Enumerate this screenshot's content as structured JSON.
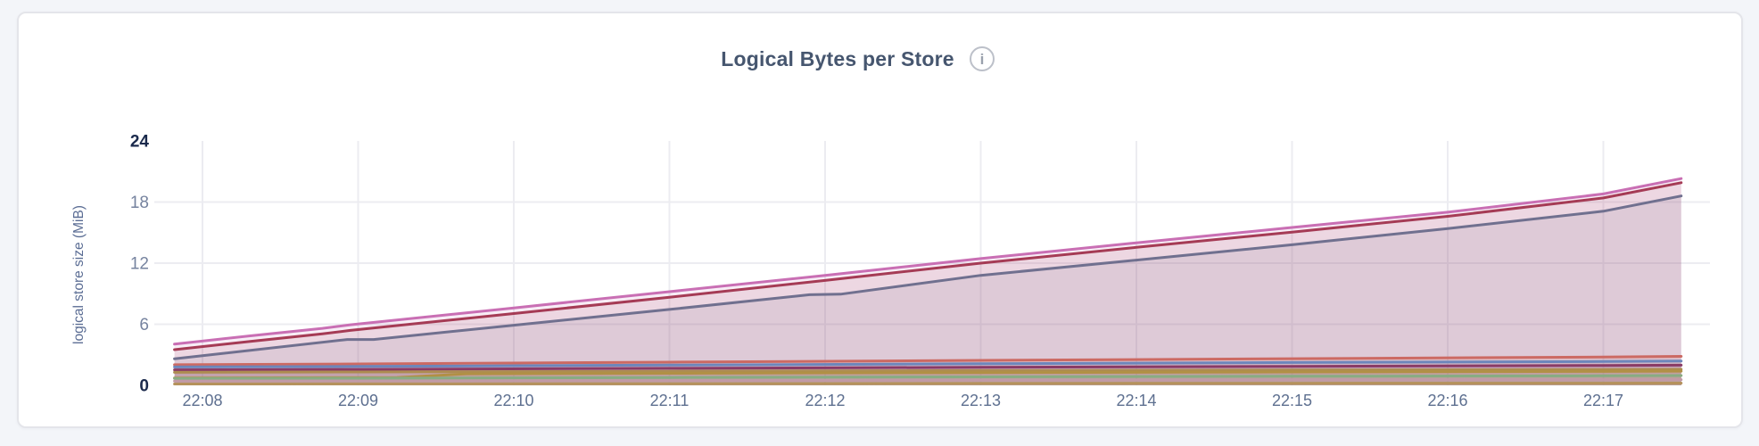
{
  "ui": {
    "info_glyph": "i"
  },
  "chart_data": {
    "type": "area",
    "title": "Logical Bytes per Store",
    "ylabel": "logical store size (MiB)",
    "xlabel": "",
    "ylim": [
      0,
      24
    ],
    "x_range": [
      "22:07:50",
      "22:17:30"
    ],
    "grid": true,
    "legend": "none",
    "fill_opacity": 0.12,
    "y_gridlines": [
      6,
      12,
      18
    ],
    "y_ticks": [
      {
        "value": 24,
        "label": "24",
        "emphasis": true
      },
      {
        "value": 18,
        "label": "18",
        "emphasis": false
      },
      {
        "value": 12,
        "label": "12",
        "emphasis": false
      },
      {
        "value": 6,
        "label": "6",
        "emphasis": false
      },
      {
        "value": 0,
        "label": "0",
        "emphasis": true
      }
    ],
    "x_ticks": [
      {
        "minute": 8,
        "label": "22:08"
      },
      {
        "minute": 9,
        "label": "22:09"
      },
      {
        "minute": 10,
        "label": "22:10"
      },
      {
        "minute": 11,
        "label": "22:11"
      },
      {
        "minute": 12,
        "label": "22:12"
      },
      {
        "minute": 13,
        "label": "22:13"
      },
      {
        "minute": 14,
        "label": "22:14"
      },
      {
        "minute": 15,
        "label": "22:15"
      },
      {
        "minute": 16,
        "label": "22:16"
      },
      {
        "minute": 17,
        "label": "22:17"
      }
    ],
    "series": [
      {
        "id": "store-1",
        "color": "#c96fb4",
        "points": [
          [
            7.82,
            4.05
          ],
          [
            8.3,
            4.85
          ],
          [
            8.77,
            5.6
          ],
          [
            8.95,
            5.95
          ],
          [
            10,
            7.6
          ],
          [
            11,
            9.2
          ],
          [
            12,
            10.8
          ],
          [
            13,
            12.45
          ],
          [
            14,
            14.0
          ],
          [
            15,
            15.5
          ],
          [
            16,
            17.0
          ],
          [
            17,
            18.8
          ],
          [
            17.5,
            20.3
          ]
        ]
      },
      {
        "id": "store-2",
        "color": "#a53b55",
        "points": [
          [
            7.82,
            3.5
          ],
          [
            8.3,
            4.3
          ],
          [
            8.77,
            5.05
          ],
          [
            8.95,
            5.4
          ],
          [
            10,
            7.05
          ],
          [
            11,
            8.65
          ],
          [
            12,
            10.3
          ],
          [
            13,
            12.0
          ],
          [
            14,
            13.55
          ],
          [
            15,
            15.05
          ],
          [
            16,
            16.6
          ],
          [
            17,
            18.4
          ],
          [
            17.5,
            19.9
          ]
        ]
      },
      {
        "id": "store-3",
        "color": "#70708f",
        "points": [
          [
            7.82,
            2.6
          ],
          [
            8.93,
            4.5
          ],
          [
            9.1,
            4.5
          ],
          [
            10,
            5.9
          ],
          [
            11,
            7.45
          ],
          [
            11.9,
            8.9
          ],
          [
            12.1,
            8.95
          ],
          [
            13,
            10.8
          ],
          [
            14,
            12.3
          ],
          [
            15,
            13.8
          ],
          [
            16,
            15.4
          ],
          [
            17,
            17.1
          ],
          [
            17.5,
            18.6
          ]
        ]
      },
      {
        "id": "store-4",
        "color": "#cc6a63",
        "points": [
          [
            7.82,
            2.02
          ],
          [
            9,
            2.1
          ],
          [
            11,
            2.28
          ],
          [
            13,
            2.45
          ],
          [
            15,
            2.62
          ],
          [
            17,
            2.78
          ],
          [
            17.5,
            2.85
          ]
        ]
      },
      {
        "id": "store-5",
        "color": "#6d86bb",
        "points": [
          [
            7.82,
            1.8
          ],
          [
            9,
            1.86
          ],
          [
            11,
            1.99
          ],
          [
            13,
            2.12
          ],
          [
            15,
            2.24
          ],
          [
            17,
            2.34
          ],
          [
            17.5,
            2.38
          ]
        ]
      },
      {
        "id": "store-6",
        "color": "#8a3b66",
        "points": [
          [
            7.82,
            1.52
          ],
          [
            9,
            1.57
          ],
          [
            11,
            1.67
          ],
          [
            13,
            1.77
          ],
          [
            15,
            1.87
          ],
          [
            17,
            1.95
          ],
          [
            17.5,
            1.98
          ]
        ]
      },
      {
        "id": "store-7",
        "color": "#ad8c51",
        "points": [
          [
            7.82,
            1.28
          ],
          [
            9,
            1.31
          ],
          [
            11,
            1.38
          ],
          [
            13,
            1.45
          ],
          [
            15,
            1.51
          ],
          [
            17,
            1.56
          ],
          [
            17.5,
            1.58
          ]
        ]
      },
      {
        "id": "store-8",
        "color": "#b19045",
        "points": [
          [
            7.82,
            0.73
          ],
          [
            9.25,
            0.76
          ],
          [
            9.7,
            1.13
          ],
          [
            11,
            1.18
          ],
          [
            13,
            1.25
          ],
          [
            15,
            1.31
          ],
          [
            17,
            1.37
          ],
          [
            17.5,
            1.39
          ]
        ]
      },
      {
        "id": "store-9",
        "color": "#88ac83",
        "points": [
          [
            7.82,
            0.68
          ],
          [
            9,
            0.7
          ],
          [
            11,
            0.77
          ],
          [
            13,
            0.83
          ],
          [
            15,
            0.89
          ],
          [
            17,
            0.94
          ],
          [
            17.5,
            0.96
          ]
        ]
      },
      {
        "id": "store-10",
        "color": "#c29aa6",
        "points": [
          [
            7.82,
            0.42
          ],
          [
            9,
            0.43
          ],
          [
            11,
            0.47
          ],
          [
            13,
            0.5
          ],
          [
            15,
            0.53
          ],
          [
            17,
            0.55
          ],
          [
            17.5,
            0.56
          ]
        ]
      },
      {
        "id": "store-11",
        "color": "#b5925c",
        "points": [
          [
            7.82,
            0.13
          ],
          [
            9,
            0.14
          ],
          [
            11,
            0.16
          ],
          [
            13,
            0.18
          ],
          [
            15,
            0.2
          ],
          [
            17,
            0.21
          ],
          [
            17.5,
            0.22
          ]
        ]
      }
    ]
  }
}
